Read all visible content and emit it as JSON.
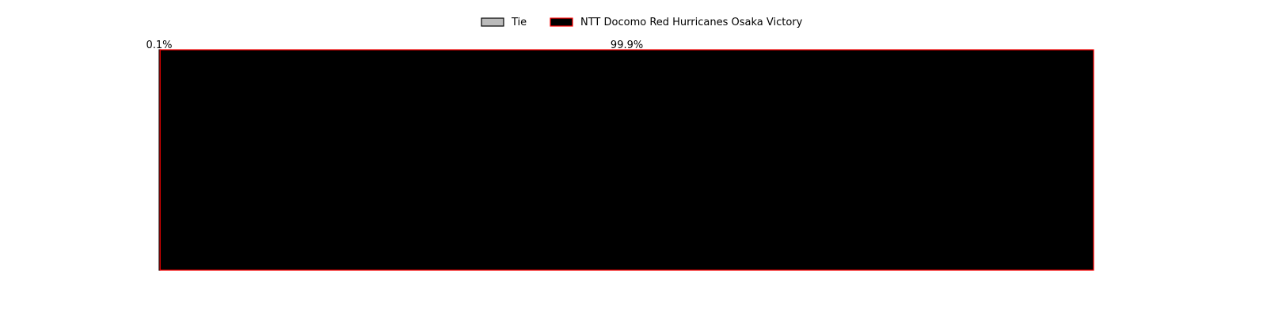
{
  "chart_data": {
    "type": "bar",
    "orientation": "horizontal-stacked-percent",
    "categories": [
      ""
    ],
    "series": [
      {
        "name": "Tie",
        "values": [
          0.1
        ],
        "label": "0.1%",
        "color": "#bbbbbb",
        "edge": "#000000"
      },
      {
        "name": "NTT Docomo Red Hurricanes Osaka Victory",
        "values": [
          99.9
        ],
        "label": "99.9%",
        "color": "#000000",
        "edge": "#ff0000"
      }
    ],
    "xlim": [
      0,
      100
    ],
    "grid": false,
    "axes_visible": false,
    "legend": {
      "placement": "top-center",
      "entries": [
        "Tie",
        "NTT Docomo Red Hurricanes Osaka Victory"
      ]
    }
  }
}
